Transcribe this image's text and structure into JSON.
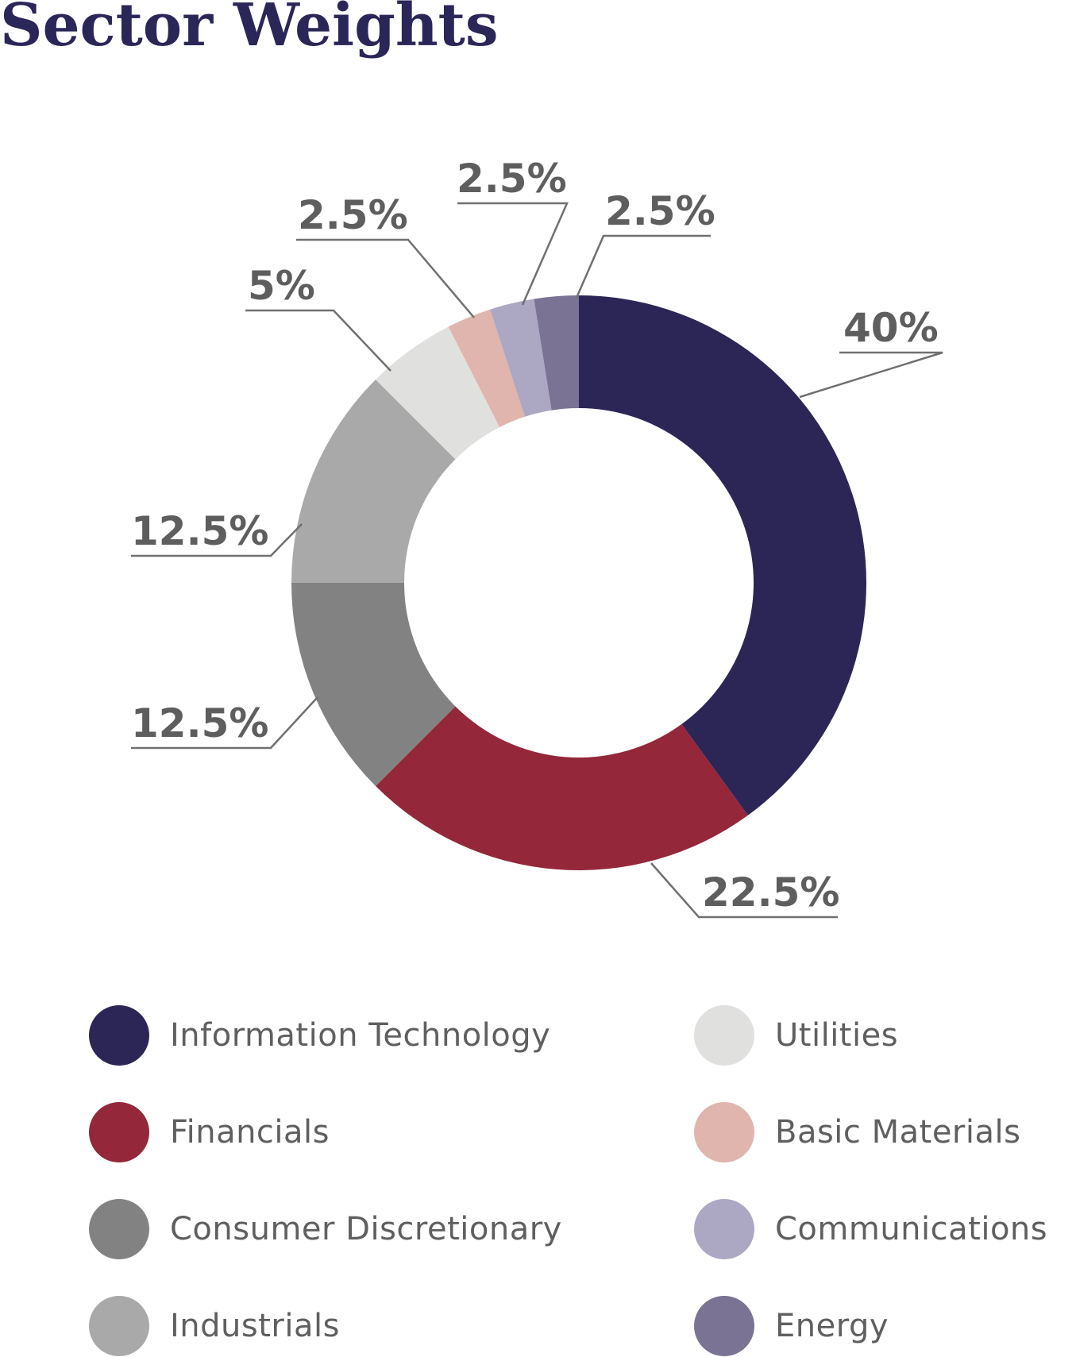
{
  "chart_data": {
    "type": "pie",
    "style": "donut",
    "title": "Sector Weights",
    "unit": "%",
    "slices": [
      {
        "label": "Information Technology",
        "value": 40,
        "value_label": "40%",
        "color": "#2c2657"
      },
      {
        "label": "Financials",
        "value": 22.5,
        "value_label": "22.5%",
        "color": "#94273a"
      },
      {
        "label": "Consumer Discretionary",
        "value": 12.5,
        "value_label": "12.5%",
        "color": "#838282"
      },
      {
        "label": "Industrials",
        "value": 12.5,
        "value_label": "12.5%",
        "color": "#a9a9a9"
      },
      {
        "label": "Utilities",
        "value": 5,
        "value_label": "5%",
        "color": "#e0e0df"
      },
      {
        "label": "Basic Materials",
        "value": 2.5,
        "value_label": "2.5%",
        "color": "#dfb5ad"
      },
      {
        "label": "Communications",
        "value": 2.5,
        "value_label": "2.5%",
        "color": "#aca7c3"
      },
      {
        "label": "Energy",
        "value": 2.5,
        "value_label": "2.5%",
        "color": "#7b7394"
      }
    ],
    "legend": {
      "position": "bottom",
      "columns": 2
    }
  }
}
